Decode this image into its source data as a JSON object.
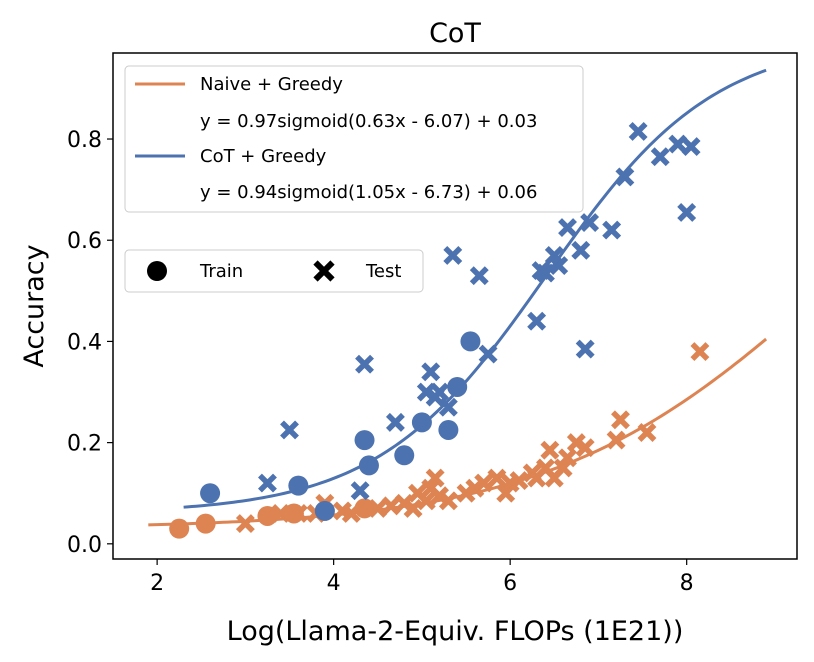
{
  "chart_data": {
    "type": "scatter",
    "title": "CoT",
    "xlabel": "Log(Llama-2-Equiv. FLOPs (1E21))",
    "ylabel": "Accuracy",
    "xlim": [
      1.5,
      9.25
    ],
    "ylim": [
      -0.03,
      0.97
    ],
    "xticks": [
      "2",
      "4",
      "6",
      "8"
    ],
    "yticks": [
      "0.0",
      "0.2",
      "0.4",
      "0.6",
      "0.8"
    ],
    "colors": {
      "naive": "#DD8452",
      "cot": "#4C72B0"
    },
    "series": [
      {
        "name": "Naive + Greedy",
        "key": "naive",
        "fit_label": "y = 0.97sigmoid(0.63x - 6.07) + 0.03",
        "fit": {
          "a": 0.97,
          "k": 0.63,
          "b": -6.07,
          "c": 0.03,
          "x_range": [
            1.9,
            8.9
          ]
        },
        "train": [
          [
            2.25,
            0.03
          ],
          [
            2.55,
            0.04
          ],
          [
            3.25,
            0.055
          ],
          [
            3.55,
            0.06
          ],
          [
            3.9,
            0.065
          ],
          [
            4.35,
            0.07
          ]
        ],
        "test": [
          [
            3.0,
            0.04
          ],
          [
            3.4,
            0.06
          ],
          [
            3.6,
            0.06
          ],
          [
            3.8,
            0.06
          ],
          [
            3.9,
            0.08
          ],
          [
            4.1,
            0.065
          ],
          [
            4.2,
            0.06
          ],
          [
            4.5,
            0.07
          ],
          [
            4.65,
            0.075
          ],
          [
            4.8,
            0.08
          ],
          [
            4.9,
            0.07
          ],
          [
            4.95,
            0.1
          ],
          [
            5.05,
            0.085
          ],
          [
            5.1,
            0.11
          ],
          [
            5.15,
            0.13
          ],
          [
            5.2,
            0.095
          ],
          [
            5.3,
            0.085
          ],
          [
            5.5,
            0.1
          ],
          [
            5.6,
            0.11
          ],
          [
            5.7,
            0.12
          ],
          [
            5.85,
            0.13
          ],
          [
            5.95,
            0.1
          ],
          [
            6.0,
            0.12
          ],
          [
            6.1,
            0.125
          ],
          [
            6.25,
            0.14
          ],
          [
            6.3,
            0.13
          ],
          [
            6.4,
            0.15
          ],
          [
            6.45,
            0.185
          ],
          [
            6.5,
            0.13
          ],
          [
            6.6,
            0.15
          ],
          [
            6.65,
            0.17
          ],
          [
            6.75,
            0.2
          ],
          [
            6.85,
            0.19
          ],
          [
            7.2,
            0.205
          ],
          [
            7.25,
            0.245
          ],
          [
            7.55,
            0.22
          ],
          [
            8.15,
            0.38
          ]
        ]
      },
      {
        "name": "CoT + Greedy",
        "key": "cot",
        "fit_label": "y = 0.94sigmoid(1.05x - 6.73) + 0.06",
        "fit": {
          "a": 0.94,
          "k": 1.05,
          "b": -6.73,
          "c": 0.06,
          "x_range": [
            2.3,
            8.9
          ]
        },
        "train": [
          [
            2.6,
            0.1
          ],
          [
            3.6,
            0.115
          ],
          [
            3.9,
            0.065
          ],
          [
            4.35,
            0.205
          ],
          [
            4.4,
            0.155
          ],
          [
            4.8,
            0.175
          ],
          [
            5.0,
            0.24
          ],
          [
            5.3,
            0.225
          ],
          [
            5.4,
            0.31
          ],
          [
            5.55,
            0.4
          ]
        ],
        "test": [
          [
            3.25,
            0.12
          ],
          [
            3.5,
            0.225
          ],
          [
            4.3,
            0.105
          ],
          [
            4.35,
            0.355
          ],
          [
            4.7,
            0.24
          ],
          [
            5.05,
            0.3
          ],
          [
            5.1,
            0.34
          ],
          [
            5.15,
            0.29
          ],
          [
            5.2,
            0.3
          ],
          [
            5.3,
            0.27
          ],
          [
            5.35,
            0.57
          ],
          [
            5.65,
            0.53
          ],
          [
            5.75,
            0.375
          ],
          [
            6.3,
            0.44
          ],
          [
            6.35,
            0.54
          ],
          [
            6.4,
            0.535
          ],
          [
            6.5,
            0.57
          ],
          [
            6.55,
            0.55
          ],
          [
            6.65,
            0.625
          ],
          [
            6.8,
            0.58
          ],
          [
            6.85,
            0.385
          ],
          [
            6.9,
            0.635
          ],
          [
            7.15,
            0.62
          ],
          [
            7.3,
            0.725
          ],
          [
            7.45,
            0.815
          ],
          [
            7.7,
            0.765
          ],
          [
            7.9,
            0.79
          ],
          [
            8.0,
            0.655
          ],
          [
            8.05,
            0.785
          ]
        ]
      }
    ],
    "legend_markers": {
      "train_label": "Train",
      "test_label": "Test",
      "position": "center-left"
    }
  }
}
